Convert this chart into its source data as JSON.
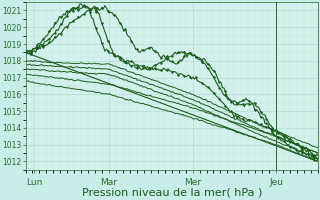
{
  "xlabel": "Pression niveau de la mer( hPa )",
  "bg_color": "#c8ece8",
  "plot_bg_color": "#d4f0ec",
  "grid_color_major": "#a8d8d0",
  "grid_color_minor": "#b8e4de",
  "line_color": "#1a5c1a",
  "ylim": [
    1011.5,
    1021.5
  ],
  "xlim": [
    0,
    3.5
  ],
  "days": [
    "Lun",
    "Mar",
    "Mer",
    "Jeu"
  ],
  "day_positions": [
    0.1,
    1.0,
    2.0,
    3.0
  ],
  "tick_label_color": "#2a6c2a",
  "axis_color": "#2a6c2a",
  "xlabel_color": "#1a5c1a",
  "xlabel_fontsize": 8,
  "yticks": [
    1012,
    1013,
    1014,
    1015,
    1016,
    1017,
    1018,
    1019,
    1020,
    1021
  ]
}
